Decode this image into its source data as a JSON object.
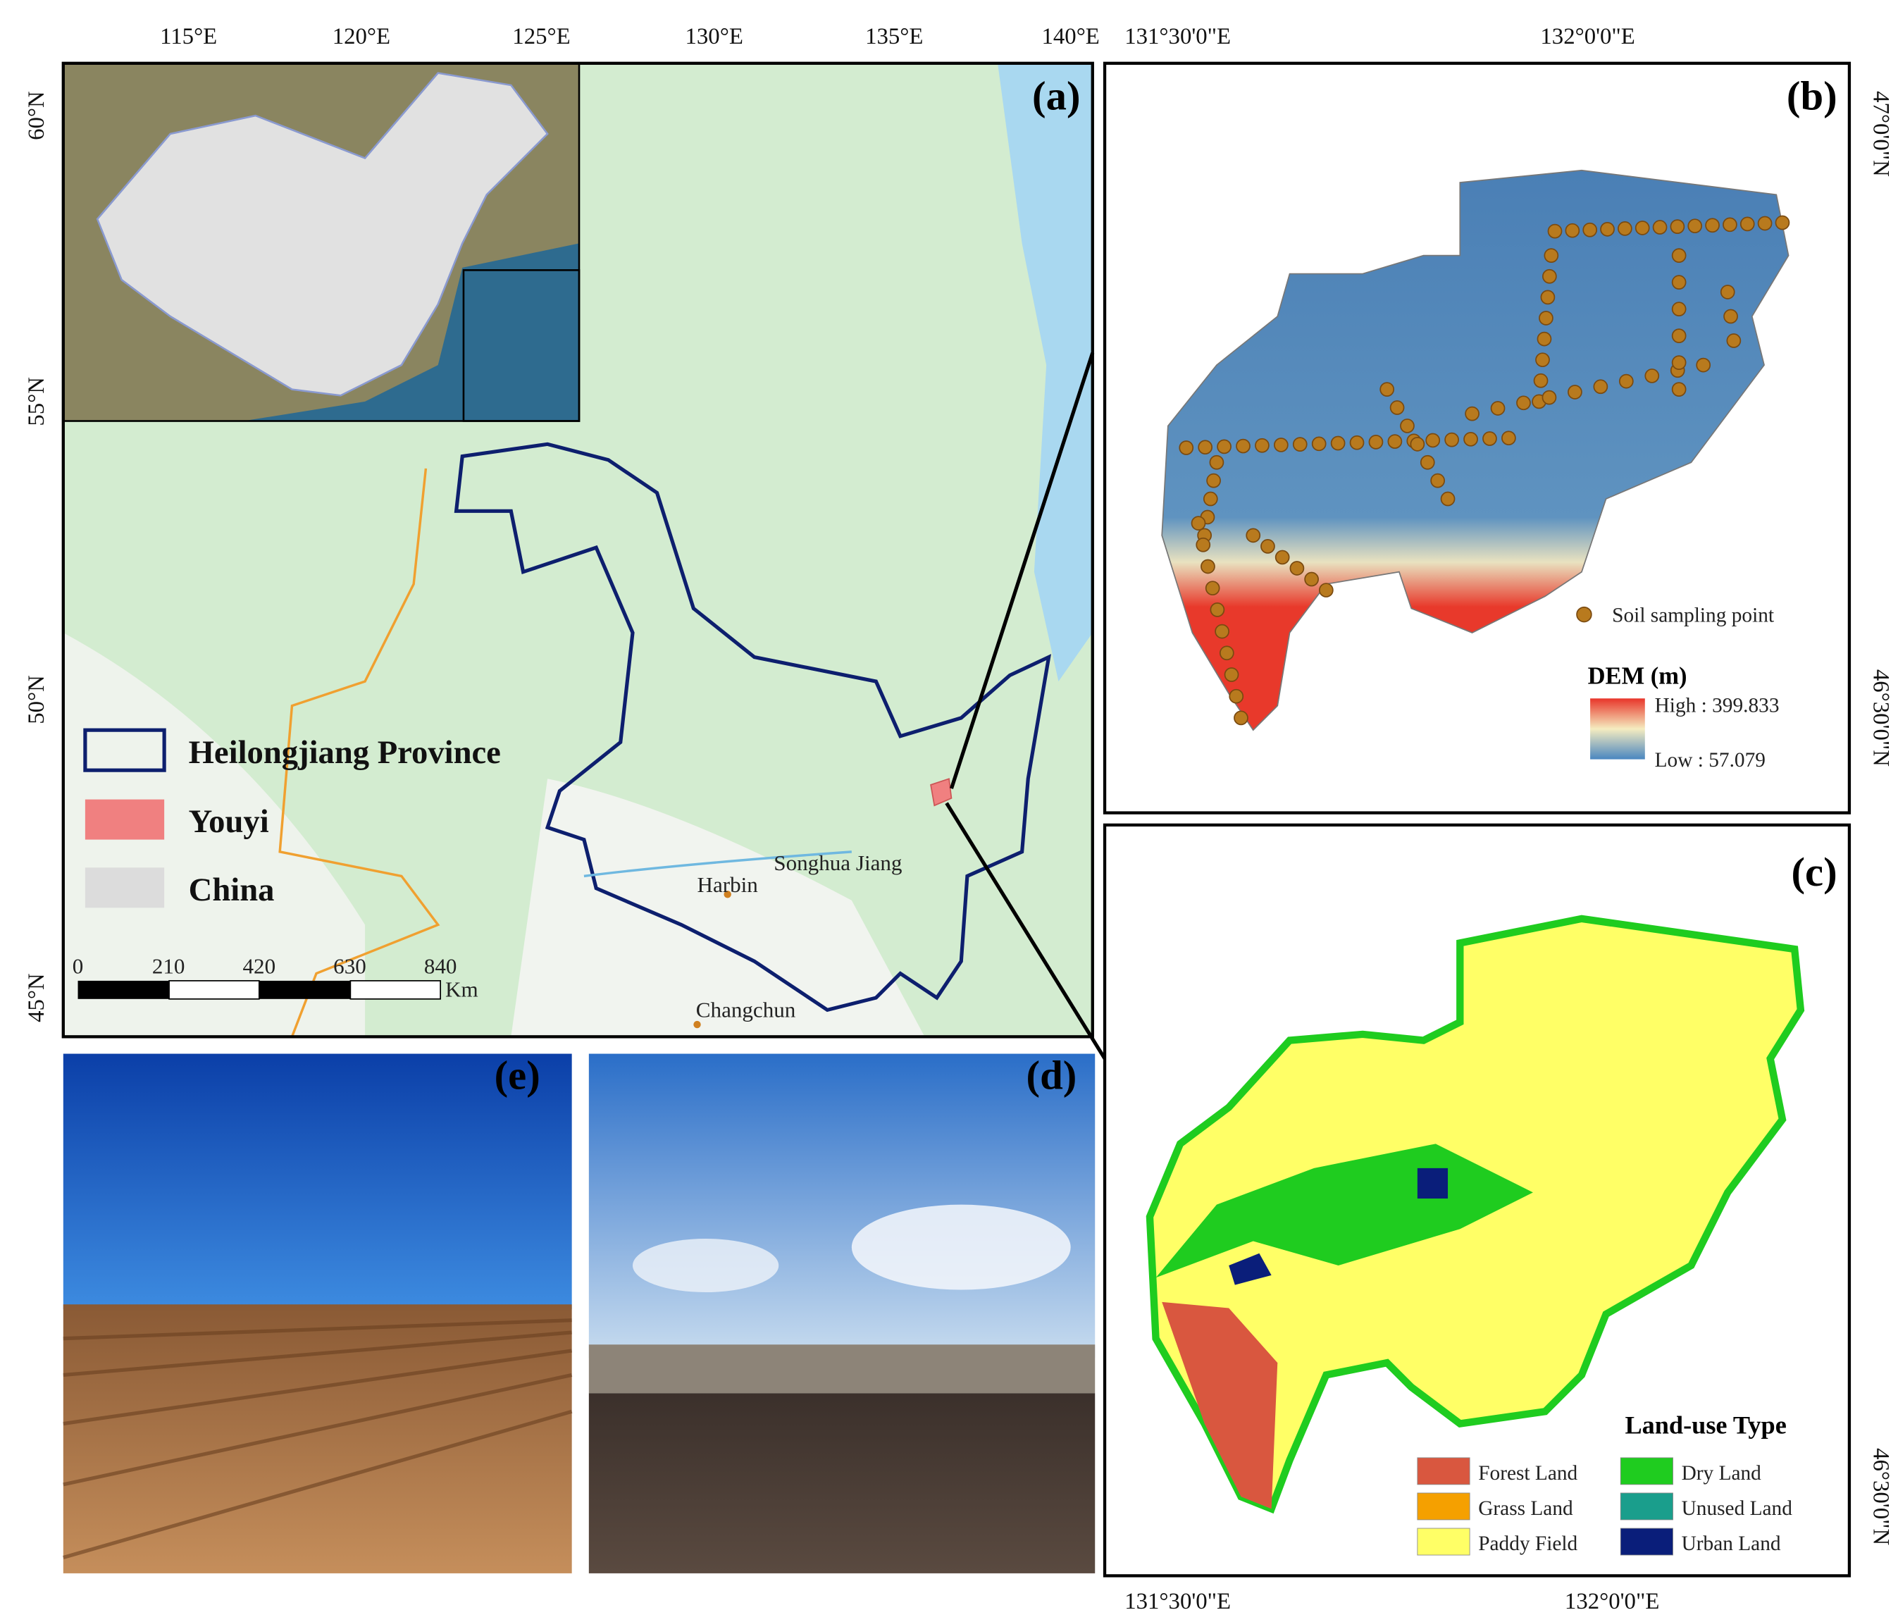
{
  "panel_a": {
    "label": "(a)",
    "lon_ticks": [
      "115°E",
      "120°E",
      "125°E",
      "130°E",
      "135°E",
      "140°E"
    ],
    "lat_ticks": [
      "60°N",
      "55°N",
      "50°N",
      "45°N"
    ],
    "legend": [
      "Heilongjiang Province",
      "Youyi",
      "China"
    ],
    "scale_labels": [
      "0",
      "210",
      "420",
      "630",
      "840"
    ],
    "scale_unit": "Km",
    "places": [
      "Harbin",
      "Changchun",
      "Songhua Jiang"
    ]
  },
  "panel_b": {
    "label": "(b)",
    "lon_ticks": [
      "131°30'0\"E",
      "132°0'0\"E"
    ],
    "lat_ticks": [
      "47°0'0\"N",
      "46°30'0\"N"
    ],
    "point_legend": "Soil sampling point",
    "dem_title": "DEM (m)",
    "dem_high": "High : 399.833",
    "dem_low": "Low : 57.079"
  },
  "panel_c": {
    "label": "(c)",
    "lon_ticks": [
      "131°30'0\"E",
      "132°0'0\"E"
    ],
    "lat_ticks": [
      "46°30'0\"N"
    ],
    "legend_title": "Land-use Type",
    "classes": [
      {
        "name": "Forest Land",
        "color": "#d9573f"
      },
      {
        "name": "Dry Land",
        "color": "#1fcc1f"
      },
      {
        "name": "Grass Land",
        "color": "#f5a000"
      },
      {
        "name": "Unused Land",
        "color": "#1a9e8c"
      },
      {
        "name": "Paddy Field",
        "color": "#ffff66"
      },
      {
        "name": "Urban Land",
        "color": "#0a1e7a"
      }
    ]
  },
  "panel_d": {
    "label": "(d)"
  },
  "panel_e": {
    "label": "(e)"
  }
}
